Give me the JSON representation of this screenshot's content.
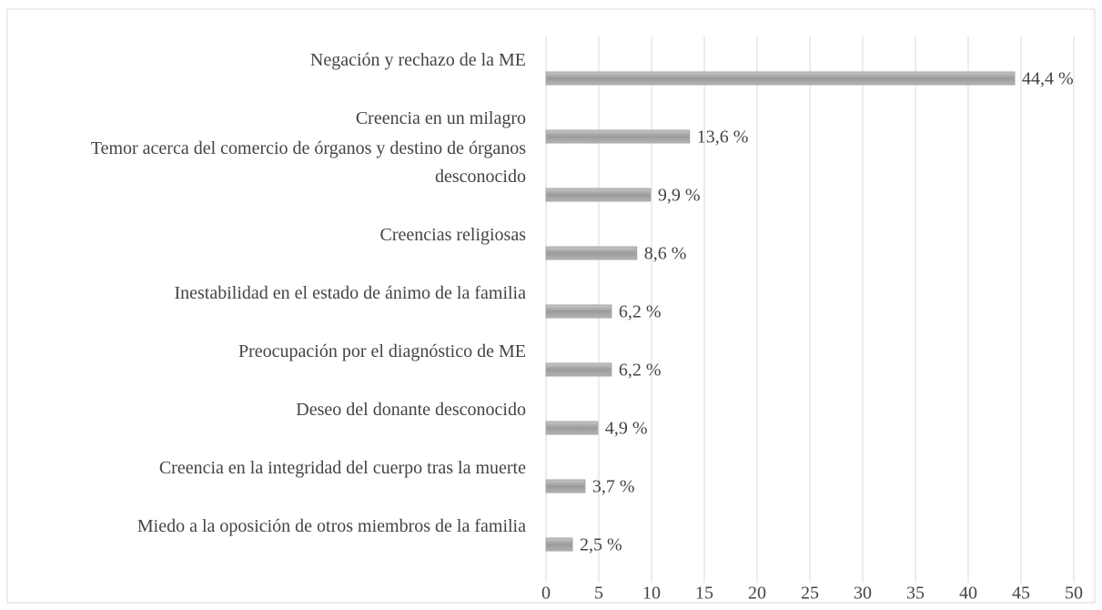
{
  "chart_data": {
    "type": "bar",
    "orientation": "horizontal",
    "categories": [
      "Negación y rechazo de la ME",
      "Creencia en un milagro",
      "Temor acerca del comercio de órganos y destino de órganos desconocido",
      "Creencias religiosas",
      "Inestabilidad en el estado de ánimo de la familia",
      "Preocupación por el diagnóstico de ME",
      "Deseo del donante desconocido",
      "Creencia en la integridad del cuerpo tras la muerte",
      "Miedo a la oposición de otros miembros de la familia"
    ],
    "values": [
      44.4,
      13.6,
      9.9,
      8.6,
      6.2,
      6.2,
      4.9,
      3.7,
      2.5
    ],
    "value_labels": [
      "44,4 %",
      "13,6 %",
      "9,9 %",
      "8,6 %",
      "6,2 %",
      "6,2 %",
      "4,9 %",
      "3,7 %",
      "2,5 %"
    ],
    "color": "#a6a6a6",
    "xlim": [
      0,
      50
    ],
    "xticks": [
      0,
      5,
      10,
      15,
      20,
      25,
      30,
      35,
      40,
      45,
      50
    ],
    "grid": true
  }
}
